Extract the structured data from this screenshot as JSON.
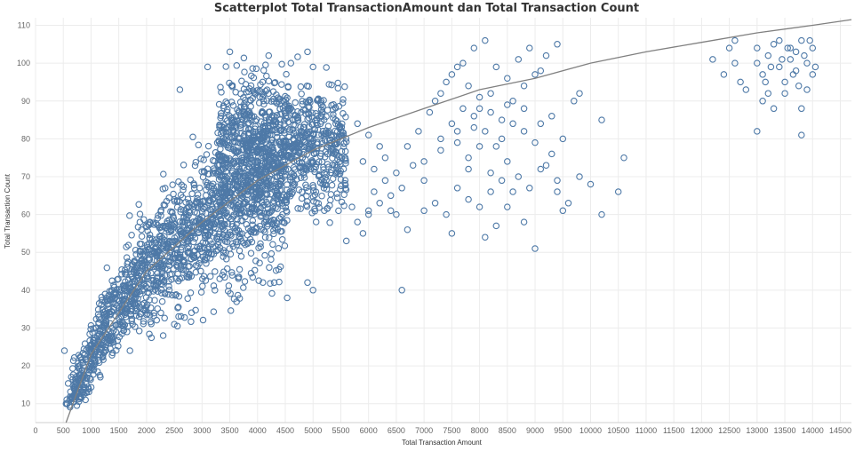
{
  "chart_data": {
    "type": "scatter",
    "title": "Scatterplot Total TransactionAmount dan Total Transaction  Count",
    "xlabel": "Total Transaction Amount",
    "ylabel": "Total Transaction Count",
    "xlim": [
      0,
      14700
    ],
    "ylim": [
      5,
      112
    ],
    "x_ticks": [
      0,
      500,
      1000,
      1500,
      2000,
      2500,
      3000,
      3500,
      4000,
      4500,
      5000,
      5500,
      6000,
      6500,
      7000,
      7500,
      8000,
      8500,
      9000,
      9500,
      10000,
      10500,
      11000,
      11500,
      12000,
      12500,
      13000,
      13500,
      14000,
      14500
    ],
    "y_ticks": [
      10,
      20,
      30,
      40,
      50,
      60,
      70,
      80,
      90,
      100,
      110
    ],
    "grid": true,
    "legend": "none",
    "marker": "hollow-circle",
    "colors": {
      "points": "#4e79a7",
      "trend": "#808080"
    },
    "trendline": {
      "type": "logarithmic",
      "points": [
        [
          550,
          5
        ],
        [
          1000,
          23
        ],
        [
          2000,
          45
        ],
        [
          3000,
          58
        ],
        [
          4000,
          69
        ],
        [
          5000,
          77
        ],
        [
          6000,
          83
        ],
        [
          7000,
          88
        ],
        [
          8000,
          93
        ],
        [
          9000,
          96
        ],
        [
          10000,
          100
        ],
        [
          11000,
          103
        ],
        [
          12000,
          105.5
        ],
        [
          13000,
          108
        ],
        [
          14000,
          110
        ],
        [
          14700,
          111.5
        ]
      ]
    },
    "series": [
      {
        "points": [
          [
            6600,
            40
          ],
          [
            9000,
            51
          ],
          [
            7000,
            61
          ],
          [
            6400,
            61
          ],
          [
            7200,
            63
          ],
          [
            7800,
            64
          ],
          [
            8500,
            62
          ],
          [
            9400,
            66
          ],
          [
            10200,
            60
          ],
          [
            10500,
            66
          ],
          [
            10600,
            75
          ],
          [
            10000,
            68
          ],
          [
            9800,
            70
          ],
          [
            7500,
            55
          ],
          [
            8800,
            58
          ],
          [
            8100,
            54
          ],
          [
            8300,
            57
          ],
          [
            6800,
            73
          ],
          [
            7000,
            69
          ],
          [
            7300,
            80
          ],
          [
            7600,
            82
          ],
          [
            7800,
            75
          ],
          [
            8000,
            88
          ],
          [
            8200,
            92
          ],
          [
            8400,
            85
          ],
          [
            8600,
            90
          ],
          [
            8800,
            94
          ],
          [
            9000,
            97
          ],
          [
            9200,
            102
          ],
          [
            9400,
            105
          ],
          [
            7500,
            97
          ],
          [
            7700,
            100
          ],
          [
            7900,
            104
          ],
          [
            8100,
            106
          ],
          [
            8300,
            99
          ],
          [
            8500,
            96
          ],
          [
            7100,
            87
          ],
          [
            7300,
            92
          ],
          [
            7500,
            84
          ],
          [
            7700,
            88
          ],
          [
            7900,
            86
          ],
          [
            8100,
            82
          ],
          [
            8300,
            78
          ],
          [
            8500,
            74
          ],
          [
            8700,
            70
          ],
          [
            8900,
            67
          ],
          [
            9100,
            72
          ],
          [
            9300,
            76
          ],
          [
            9500,
            80
          ],
          [
            9700,
            90
          ],
          [
            8000,
            78
          ],
          [
            8200,
            71
          ],
          [
            8400,
            69
          ],
          [
            8600,
            66
          ],
          [
            6700,
            78
          ],
          [
            6900,
            82
          ],
          [
            10200,
            85
          ],
          [
            7400,
            60
          ],
          [
            7600,
            67
          ],
          [
            7800,
            72
          ],
          [
            8000,
            62
          ],
          [
            8200,
            66
          ],
          [
            8400,
            80
          ],
          [
            8600,
            84
          ],
          [
            8800,
            88
          ],
          [
            9000,
            79
          ],
          [
            9200,
            73
          ],
          [
            9400,
            69
          ],
          [
            9600,
            63
          ],
          [
            9800,
            92
          ],
          [
            7200,
            90
          ],
          [
            7400,
            95
          ],
          [
            7600,
            99
          ],
          [
            7800,
            94
          ],
          [
            8000,
            91
          ],
          [
            8700,
            101
          ],
          [
            8900,
            104
          ],
          [
            9100,
            98
          ],
          [
            9300,
            86
          ],
          [
            9500,
            61
          ],
          [
            6500,
            60
          ],
          [
            6700,
            56
          ],
          [
            7000,
            74
          ],
          [
            7300,
            77
          ],
          [
            7600,
            79
          ],
          [
            7900,
            83
          ],
          [
            8200,
            87
          ],
          [
            8500,
            89
          ],
          [
            8800,
            82
          ],
          [
            9100,
            84
          ],
          [
            12200,
            101
          ],
          [
            12400,
            97
          ],
          [
            12500,
            104
          ],
          [
            12600,
            100
          ],
          [
            12700,
            95
          ],
          [
            12800,
            93
          ],
          [
            12600,
            106
          ],
          [
            13000,
            82
          ],
          [
            13000,
            104
          ],
          [
            13100,
            97
          ],
          [
            13100,
            90
          ],
          [
            13200,
            102
          ],
          [
            13200,
            92
          ],
          [
            13300,
            105
          ],
          [
            13300,
            88
          ],
          [
            13400,
            106
          ],
          [
            13400,
            99
          ],
          [
            13500,
            95
          ],
          [
            13500,
            92
          ],
          [
            13600,
            104
          ],
          [
            13600,
            101
          ],
          [
            13700,
            98
          ],
          [
            13700,
            103
          ],
          [
            13800,
            106
          ],
          [
            13800,
            88
          ],
          [
            13800,
            81
          ],
          [
            13900,
            100
          ],
          [
            13900,
            93
          ],
          [
            14000,
            104
          ],
          [
            14000,
            97
          ],
          [
            13000,
            100
          ],
          [
            13150,
            95
          ],
          [
            13250,
            99
          ],
          [
            13450,
            101
          ],
          [
            13550,
            104
          ],
          [
            13650,
            97
          ],
          [
            13750,
            94
          ],
          [
            13850,
            102
          ],
          [
            13950,
            106
          ],
          [
            14050,
            99
          ],
          [
            5600,
            53
          ],
          [
            5800,
            58
          ],
          [
            6000,
            61
          ],
          [
            6200,
            63
          ],
          [
            6300,
            69
          ],
          [
            6500,
            71
          ],
          [
            6100,
            66
          ],
          [
            5900,
            74
          ],
          [
            6200,
            78
          ],
          [
            6000,
            81
          ],
          [
            5800,
            84
          ],
          [
            6100,
            72
          ],
          [
            6400,
            65
          ],
          [
            6600,
            67
          ],
          [
            5700,
            62
          ],
          [
            5900,
            55
          ],
          [
            6000,
            60
          ],
          [
            6300,
            75
          ],
          [
            4200,
            102
          ],
          [
            4600,
            100
          ],
          [
            4900,
            103
          ],
          [
            5000,
            99
          ],
          [
            3500,
            103
          ],
          [
            3100,
            99
          ],
          [
            2600,
            93
          ],
          [
            4300,
            42
          ],
          [
            4900,
            42
          ],
          [
            5000,
            40
          ],
          [
            2500,
            31
          ],
          [
            2300,
            28
          ],
          [
            1700,
            24
          ],
          [
            900,
            11
          ],
          [
            550,
            10
          ],
          [
            520,
            24
          ]
        ]
      }
    ]
  }
}
